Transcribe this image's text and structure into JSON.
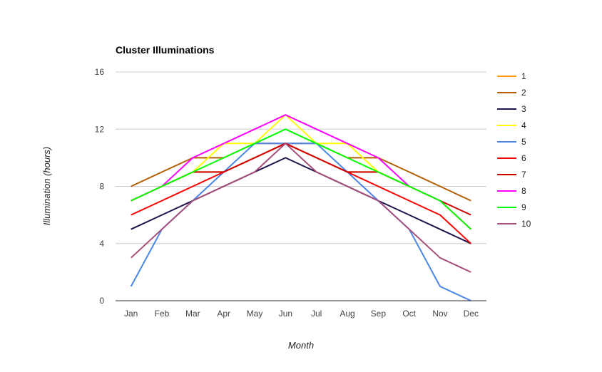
{
  "chart_data": {
    "type": "line",
    "title": "Cluster Illuminations",
    "xlabel": "Month",
    "ylabel": "Illumination (hours)",
    "ylim": [
      0,
      16
    ],
    "yticks": [
      0,
      4,
      8,
      12,
      16
    ],
    "grid": true,
    "legend_position": "right",
    "categories": [
      "Jan",
      "Feb",
      "Mar",
      "Apr",
      "May",
      "Jun",
      "Jul",
      "Aug",
      "Sep",
      "Oct",
      "Nov",
      "Dec"
    ],
    "series": [
      {
        "name": "1",
        "color": "#ff9900",
        "values": [
          7,
          8,
          9,
          9,
          10,
          11,
          10,
          9,
          9,
          8,
          7,
          5
        ]
      },
      {
        "name": "2",
        "color": "#b45f06",
        "values": [
          8,
          9,
          10,
          10,
          11,
          11,
          11,
          10,
          10,
          9,
          8,
          7
        ]
      },
      {
        "name": "3",
        "color": "#20124d",
        "values": [
          5,
          6,
          7,
          8,
          9,
          10,
          9,
          8,
          7,
          6,
          5,
          4
        ]
      },
      {
        "name": "4",
        "color": "#ffff00",
        "values": [
          7,
          8,
          9,
          11,
          11,
          13,
          11,
          11,
          9,
          8,
          7,
          5
        ]
      },
      {
        "name": "5",
        "color": "#4a86e8",
        "values": [
          1,
          5,
          7,
          9,
          11,
          11,
          11,
          9,
          7,
          5,
          1,
          0
        ]
      },
      {
        "name": "6",
        "color": "#ff0000",
        "values": [
          6,
          7,
          8,
          9,
          10,
          11,
          10,
          9,
          8,
          7,
          6,
          4
        ]
      },
      {
        "name": "7",
        "color": "#cc0000",
        "values": [
          7,
          8,
          9,
          9,
          10,
          11,
          10,
          9,
          9,
          8,
          7,
          6
        ]
      },
      {
        "name": "8",
        "color": "#ff00ff",
        "values": [
          7,
          8,
          10,
          11,
          12,
          13,
          12,
          11,
          10,
          8,
          7,
          5
        ]
      },
      {
        "name": "9",
        "color": "#00ff00",
        "values": [
          7,
          8,
          9,
          10,
          11,
          12,
          11,
          10,
          9,
          8,
          7,
          5
        ]
      },
      {
        "name": "10",
        "color": "#a64d79",
        "values": [
          3,
          5,
          7,
          8,
          9,
          11,
          9,
          8,
          7,
          5,
          3,
          2
        ]
      }
    ]
  }
}
